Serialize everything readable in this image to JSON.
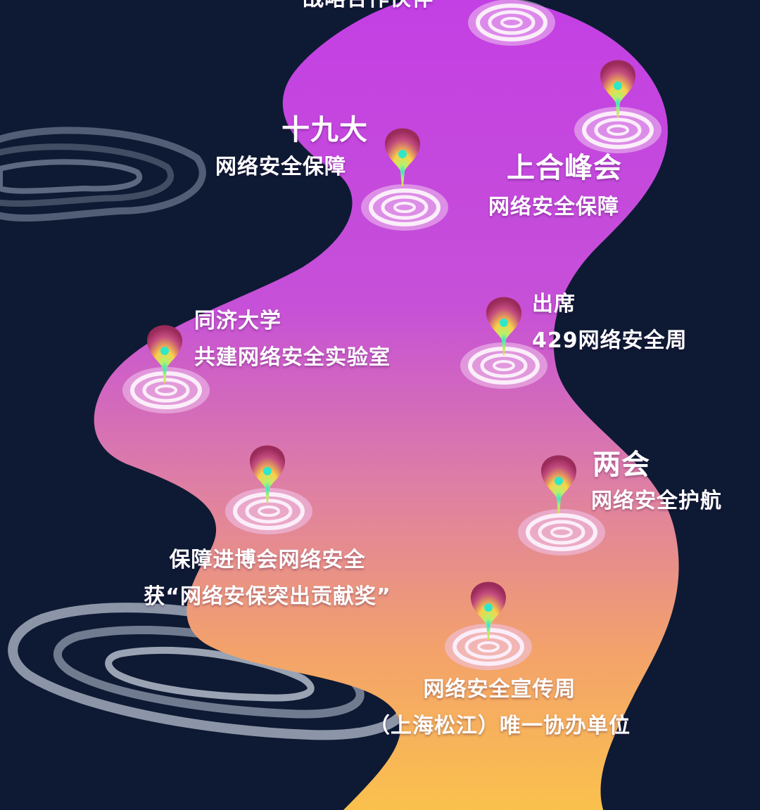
{
  "colors": {
    "background": "#0e1a33",
    "river_top": "#c33fe4",
    "river_mid": "#d96fb2",
    "river_bottom": "#f9c14e",
    "label": "#ffffff",
    "bulb_top": "#b3396a",
    "bulb_mid": "#f9d04a",
    "bulb_core": "#2fe8c9",
    "ripple": "#f4d8f2"
  },
  "milestones": {
    "top_cut": {
      "line1": "战略合作伙伴"
    },
    "nineteenth_congress": {
      "line1": "十九大",
      "line2": "网络安全保障"
    },
    "sco_summit": {
      "line1": "上合峰会",
      "line2": "网络安全保障"
    },
    "tongji": {
      "line1": "同济大学",
      "line2": "共建网络安全实验室"
    },
    "week_429": {
      "line1": "出席",
      "line2": "429网络安全周"
    },
    "two_sessions": {
      "line1": "两会",
      "line2": "网络安全护航"
    },
    "ciie": {
      "line1": "保障进博会网络安全",
      "line2": "获“网络安保突出贡献奖”"
    },
    "publicity_week": {
      "line1": "网络安全宣传周",
      "line2": "（上海松江）唯一协办单位"
    }
  }
}
